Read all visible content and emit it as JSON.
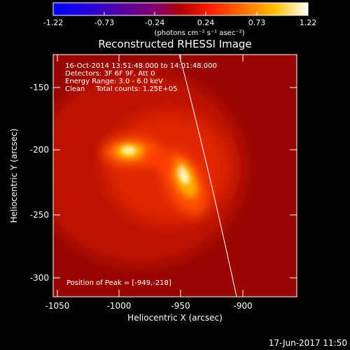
{
  "colorbar": {
    "ticks": [
      "-1.22",
      "-0.73",
      "-0.24",
      "0.24",
      "0.73",
      "1.22"
    ],
    "unit_text": "(photons cm⁻² s⁻¹ asec⁻²)"
  },
  "image": {
    "title": "Reconstructed RHESSI Image",
    "info": [
      "16-Oct-2014 13:51:48.000 to 14:01:48.000",
      "Detectors: 3F 6F 9F, Att 0",
      "Energy Range: 3.0 - 6.0 keV",
      "Clean     Total counts: 1.25E+05"
    ],
    "peak_label": "Position of Peak = [-949,-218]",
    "x_ticks": [
      "-1050",
      "-1000",
      "-950",
      "-900"
    ],
    "y_ticks": [
      "-150",
      "-200",
      "-250",
      "-300"
    ],
    "xlabel": "Heliocentric X (arcsec)",
    "ylabel": "Heliocentric Y (arcsec)"
  },
  "timestamp": "17-Jun-2017 11:50"
}
